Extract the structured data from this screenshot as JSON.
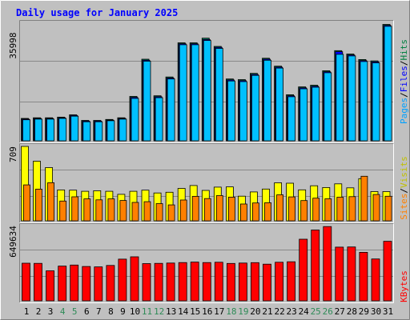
{
  "title": "Daily usage for January 2025",
  "colors": {
    "background": "#c0c0c0",
    "title": "#0000ff",
    "weekday_label": "#000000",
    "weekend_label": "#2e8b57",
    "hits": "#00805c",
    "files": "#0000ff",
    "pages": "#00c0ff",
    "visits": "#ffff00",
    "sites": "#ff8000",
    "kbytes": "#ff0000",
    "label_hits": "#008040",
    "label_files": "#0000ff",
    "label_pages": "#00a0ff",
    "label_visits": "#c0c000",
    "label_sites": "#ff8000",
    "label_kbytes": "#ff0000",
    "separator": "#000000"
  },
  "panels": {
    "top": {
      "max_label": "35998",
      "legend": [
        "Pages",
        "/",
        "Files",
        "/",
        "Hits"
      ]
    },
    "mid": {
      "max_label": "709",
      "legend": [
        "Sites",
        "/",
        "Visits"
      ]
    },
    "bot": {
      "max_label": "649634",
      "legend": [
        "KBytes"
      ]
    }
  },
  "chart_data": {
    "type": "bar",
    "title": "Daily usage for January 2025",
    "categories": [
      "1",
      "2",
      "3",
      "4",
      "5",
      "6",
      "7",
      "8",
      "9",
      "10",
      "11",
      "12",
      "13",
      "14",
      "15",
      "16",
      "17",
      "18",
      "19",
      "20",
      "21",
      "22",
      "23",
      "24",
      "25",
      "26",
      "27",
      "28",
      "29",
      "30",
      "31"
    ],
    "weekend_days": [
      "4",
      "5",
      "11",
      "12",
      "18",
      "19",
      "25",
      "26"
    ],
    "panels": [
      {
        "name": "top",
        "ylim": [
          0,
          35998
        ],
        "series": [
          {
            "name": "Hits",
            "values": [
              6800,
              7000,
              7000,
              7200,
              7900,
              6200,
              6200,
              6500,
              7000,
              13500,
              24800,
              13700,
              19400,
              29800,
              29800,
              31200,
              28700,
              18800,
              18600,
              20500,
              25100,
              22700,
              14000,
              16400,
              16900,
              21300,
              27400,
              26400,
              24700,
              24300,
              35400
            ]
          },
          {
            "name": "Files",
            "values": [
              6600,
              6800,
              6800,
              7000,
              7700,
              6000,
              6000,
              6300,
              6800,
              13200,
              24500,
              13400,
              19100,
              29500,
              29500,
              30800,
              28400,
              18500,
              18300,
              20200,
              24800,
              22400,
              13700,
              16100,
              16600,
              21000,
              27100,
              26100,
              24400,
              24000,
              35100
            ]
          },
          {
            "name": "Pages",
            "values": [
              6400,
              6600,
              6600,
              6800,
              7500,
              5800,
              5800,
              6100,
              6600,
              12900,
              24200,
              13100,
              18800,
              29200,
              29200,
              30500,
              28100,
              18200,
              18000,
              19900,
              24500,
              22100,
              13400,
              15800,
              16300,
              20700,
              26300,
              25800,
              24100,
              23700,
              34800
            ]
          }
        ]
      },
      {
        "name": "mid",
        "ylim": [
          0,
          709
        ],
        "series": [
          {
            "name": "Visits",
            "values": [
              709,
              568,
              507,
              294,
              292,
              281,
              287,
              281,
              252,
              281,
              292,
              265,
              272,
              309,
              336,
              290,
              321,
              323,
              235,
              275,
              303,
              362,
              358,
              295,
              334,
              317,
              352,
              314,
              402,
              278,
              278
            ]
          },
          {
            "name": "Sites",
            "values": [
              342,
              302,
              363,
              188,
              229,
              209,
              200,
              209,
              194,
              175,
              182,
              164,
              152,
              198,
              233,
              212,
              240,
              226,
              160,
              170,
              172,
              248,
              228,
              193,
              216,
              210,
              225,
              230,
              425,
              251,
              234
            ]
          }
        ]
      },
      {
        "name": "bot",
        "ylim": [
          0,
          649634
        ],
        "series": [
          {
            "name": "KBytes",
            "values": [
              328000,
              327000,
              262000,
              303000,
              312000,
              300000,
              296000,
              309000,
              364000,
              384000,
              325000,
              327000,
              330000,
              334000,
              338000,
              334000,
              337000,
              326000,
              330000,
              333000,
              320000,
              337000,
              341000,
              538000,
              618000,
              648000,
              469000,
              470000,
              423000,
              365000,
              520000
            ]
          }
        ]
      }
    ]
  }
}
